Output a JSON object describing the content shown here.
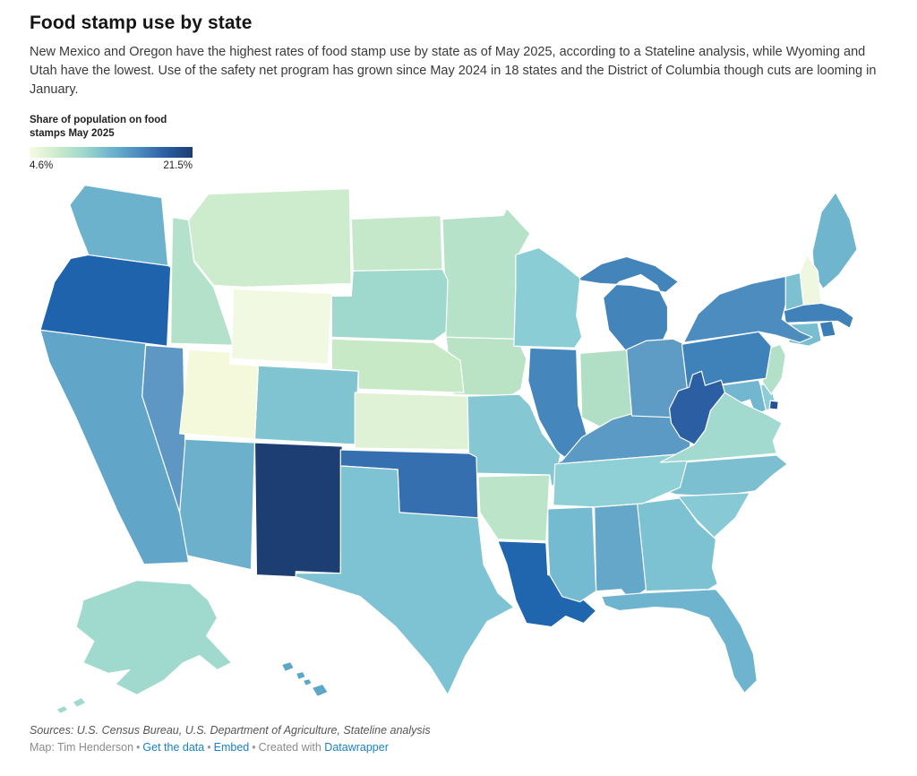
{
  "header": {
    "title": "Food stamp use by state",
    "description": "New Mexico and Oregon have the highest rates of food stamp use by state as of May 2025, according to a Stateline analysis, while Wyoming and Utah have the lowest. Use of the safety net program has grown since May 2024 in 18 states and the District of Columbia though cuts are looming in January."
  },
  "legend": {
    "title_line1": "Share of population on food",
    "title_line2": "stamps May 2025",
    "min_label": "4.6%",
    "max_label": "21.5%",
    "gradient": [
      "#f7fbe3",
      "#cdebcd",
      "#9fd8cc",
      "#6fb4ce",
      "#4c8cbf",
      "#2b5ea3",
      "#1c3e73"
    ]
  },
  "footer": {
    "sources": "Sources: U.S. Census Bureau, U.S. Department of Agriculture, Stateline analysis",
    "map_credit": "Map: Tim Henderson",
    "separator": "•",
    "get_the_data": "Get the data",
    "embed": "Embed",
    "created_with": "Created with",
    "datawrapper": "Datawrapper"
  },
  "chart_data": {
    "type": "heatmap",
    "subtype": "us-state-choropleth",
    "title": "Share of population on food stamps May 2025",
    "unit": "%",
    "min": 4.6,
    "max": 21.5,
    "min_label": "4.6%",
    "max_label": "21.5%",
    "states": [
      {
        "abbr": "AL",
        "name": "Alabama",
        "value": 12.4,
        "color": "#64a7c9"
      },
      {
        "abbr": "AK",
        "name": "Alaska",
        "value": 8.9,
        "color": "#a0d9cd"
      },
      {
        "abbr": "AZ",
        "name": "Arizona",
        "value": 11.9,
        "color": "#6cb0cc"
      },
      {
        "abbr": "AR",
        "name": "Arkansas",
        "value": 7.7,
        "color": "#bce4c8"
      },
      {
        "abbr": "CA",
        "name": "California",
        "value": 12.6,
        "color": "#61a5c8"
      },
      {
        "abbr": "CO",
        "name": "Colorado",
        "value": 10.4,
        "color": "#80c4d2"
      },
      {
        "abbr": "CT",
        "name": "Connecticut",
        "value": 11.0,
        "color": "#79bdd0"
      },
      {
        "abbr": "DE",
        "name": "Delaware",
        "value": 9.9,
        "color": "#8ccdd6"
      },
      {
        "abbr": "DC",
        "name": "District of Columbia",
        "value": 20.4,
        "color": "#24508f"
      },
      {
        "abbr": "FL",
        "name": "Florida",
        "value": 11.7,
        "color": "#6fb4ce"
      },
      {
        "abbr": "GA",
        "name": "Georgia",
        "value": 10.7,
        "color": "#7dc2d2"
      },
      {
        "abbr": "HI",
        "name": "Hawaii",
        "value": 12.5,
        "color": "#5ca6c8"
      },
      {
        "abbr": "ID",
        "name": "Idaho",
        "value": 8.0,
        "color": "#b4e1c9"
      },
      {
        "abbr": "IL",
        "name": "Illinois",
        "value": 14.5,
        "color": "#4586bc"
      },
      {
        "abbr": "IN",
        "name": "Indiana",
        "value": 8.1,
        "color": "#b0dfc5"
      },
      {
        "abbr": "IA",
        "name": "Iowa",
        "value": 7.8,
        "color": "#bae3c6"
      },
      {
        "abbr": "KS",
        "name": "Kansas",
        "value": 6.2,
        "color": "#dff2d5"
      },
      {
        "abbr": "KY",
        "name": "Kentucky",
        "value": 13.2,
        "color": "#5a9ac4"
      },
      {
        "abbr": "LA",
        "name": "Louisiana",
        "value": 18.3,
        "color": "#1f66ae"
      },
      {
        "abbr": "ME",
        "name": "Maine",
        "value": 11.6,
        "color": "#70b5ce"
      },
      {
        "abbr": "MD",
        "name": "Maryland",
        "value": 11.5,
        "color": "#72b7cf"
      },
      {
        "abbr": "MA",
        "name": "Massachusetts",
        "value": 14.9,
        "color": "#4081b9"
      },
      {
        "abbr": "MI",
        "name": "Michigan",
        "value": 14.3,
        "color": "#4384bb"
      },
      {
        "abbr": "MN",
        "name": "Minnesota",
        "value": 7.9,
        "color": "#b6e2c9"
      },
      {
        "abbr": "MS",
        "name": "Mississippi",
        "value": 11.3,
        "color": "#74bad0"
      },
      {
        "abbr": "MO",
        "name": "Missouri",
        "value": 10.2,
        "color": "#85c7d3"
      },
      {
        "abbr": "MT",
        "name": "Montana",
        "value": 7.0,
        "color": "#cdebcd"
      },
      {
        "abbr": "NE",
        "name": "Nebraska",
        "value": 7.2,
        "color": "#c8e9c6"
      },
      {
        "abbr": "NV",
        "name": "Nevada",
        "value": 13.4,
        "color": "#5e97c3"
      },
      {
        "abbr": "NH",
        "name": "New Hampshire",
        "value": 5.3,
        "color": "#eff7e1"
      },
      {
        "abbr": "NJ",
        "name": "New Jersey",
        "value": 8.0,
        "color": "#b2e0c8"
      },
      {
        "abbr": "NM",
        "name": "New Mexico",
        "value": 21.5,
        "color": "#1c3e73"
      },
      {
        "abbr": "NY",
        "name": "New York",
        "value": 14.6,
        "color": "#4c8cbf"
      },
      {
        "abbr": "NC",
        "name": "North Carolina",
        "value": 10.8,
        "color": "#7bbfd1"
      },
      {
        "abbr": "ND",
        "name": "North Dakota",
        "value": 7.3,
        "color": "#c5e8ca"
      },
      {
        "abbr": "OH",
        "name": "Ohio",
        "value": 13.0,
        "color": "#5f9cc5"
      },
      {
        "abbr": "OK",
        "name": "Oklahoma",
        "value": 15.6,
        "color": "#366fb0"
      },
      {
        "abbr": "OR",
        "name": "Oregon",
        "value": 18.4,
        "color": "#1e63ac"
      },
      {
        "abbr": "PA",
        "name": "Pennsylvania",
        "value": 14.4,
        "color": "#3f81b9"
      },
      {
        "abbr": "RI",
        "name": "Rhode Island",
        "value": 15.2,
        "color": "#3a7db7"
      },
      {
        "abbr": "SC",
        "name": "South Carolina",
        "value": 10.1,
        "color": "#87c9d4"
      },
      {
        "abbr": "SD",
        "name": "South Dakota",
        "value": 9.0,
        "color": "#9fd8cc"
      },
      {
        "abbr": "TN",
        "name": "Tennessee",
        "value": 9.7,
        "color": "#8fd0d6"
      },
      {
        "abbr": "TX",
        "name": "Texas",
        "value": 10.6,
        "color": "#7ec3d3"
      },
      {
        "abbr": "UT",
        "name": "Utah",
        "value": 4.7,
        "color": "#f5f9dc"
      },
      {
        "abbr": "VT",
        "name": "Vermont",
        "value": 10.7,
        "color": "#7cc0d1"
      },
      {
        "abbr": "VA",
        "name": "Virginia",
        "value": 8.8,
        "color": "#a3dad0"
      },
      {
        "abbr": "WA",
        "name": "Washington",
        "value": 11.8,
        "color": "#6db2cd"
      },
      {
        "abbr": "WV",
        "name": "West Virginia",
        "value": 16.8,
        "color": "#2b5ea3"
      },
      {
        "abbr": "WI",
        "name": "Wisconsin",
        "value": 9.9,
        "color": "#8acdd4"
      },
      {
        "abbr": "WY",
        "name": "Wyoming",
        "value": 4.6,
        "color": "#f2f9e2"
      }
    ]
  }
}
